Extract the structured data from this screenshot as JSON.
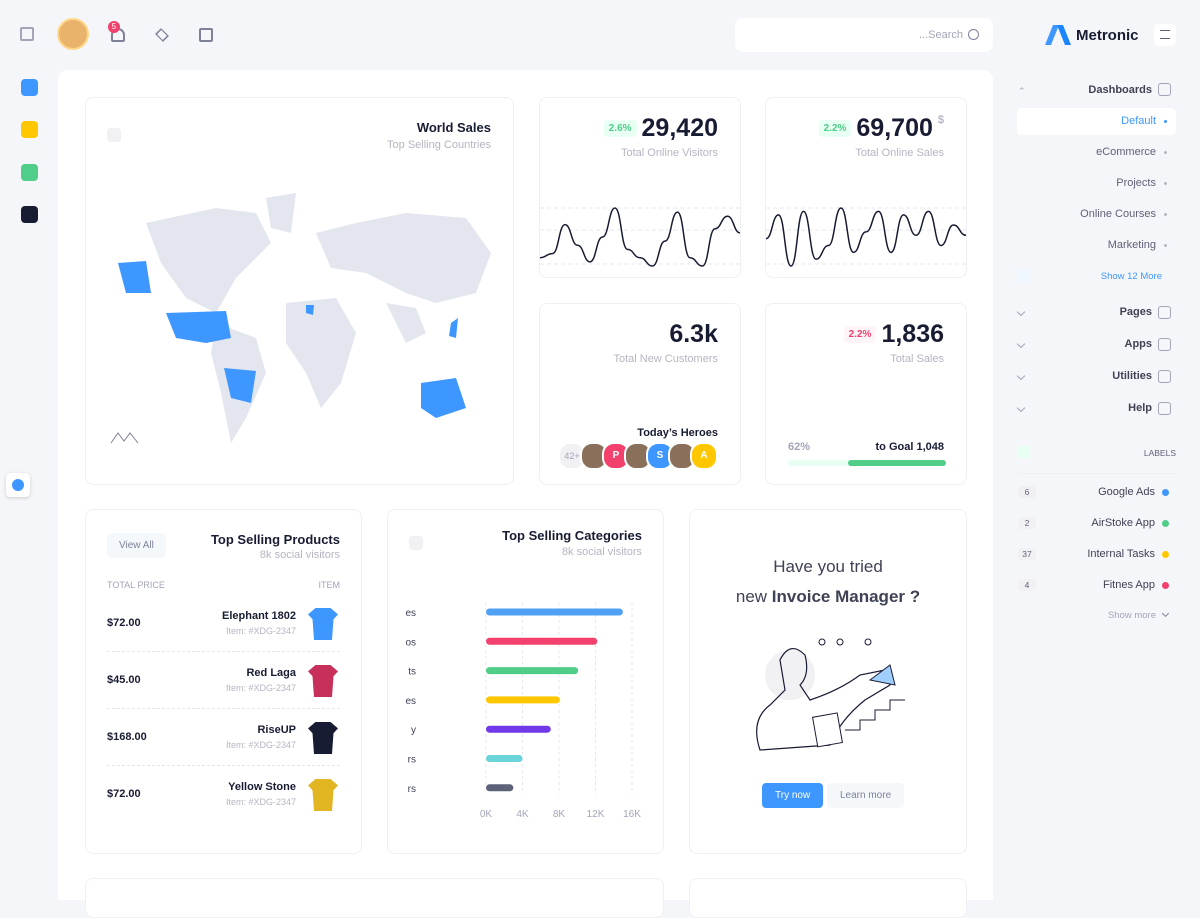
{
  "topbar": {
    "notifications": "5",
    "search": "...Search"
  },
  "brand": "Metronic",
  "world_sales": {
    "title": "World Sales",
    "subtitle": "Top Selling Countries"
  },
  "stats": [
    {
      "badge": "2.6%",
      "value": "29,420",
      "label": "Total Online Visitors",
      "sparkline": [
        30,
        35,
        70,
        45,
        25,
        55,
        90,
        40,
        30,
        20,
        50,
        85,
        30,
        20,
        65,
        80,
        60
      ]
    },
    {
      "badge": "2.2%",
      "value": "69,700",
      "unit": "$",
      "label": "Total Online Sales",
      "sparkline": [
        50,
        85,
        10,
        90,
        20,
        40,
        95,
        30,
        60,
        90,
        30,
        85,
        55,
        90,
        40,
        70,
        55
      ]
    },
    {
      "value": "6.3k",
      "label": "Total New Customers"
    },
    {
      "badge": "2.2%",
      "value": "1,836",
      "label": "Total Sales"
    }
  ],
  "heroes": {
    "title": "Today’s Heroes",
    "more": "42+",
    "letters": [
      "P",
      "S",
      "A"
    ]
  },
  "goal": {
    "percent": {
      "value": 62,
      "label": "62%"
    },
    "text": "to Goal 1,048"
  },
  "products": {
    "title": "Top Selling Products",
    "subtitle": "8k social visitors",
    "button": "View All",
    "headers": [
      "TOTAL PRICE",
      "ITEM"
    ],
    "rows": [
      {
        "price": "$72.00",
        "name": "Elephant 1802",
        "sku": "Item: #XDG-2347"
      },
      {
        "price": "$45.00",
        "name": "Red Laga",
        "sku": "Item: #XDG-2347"
      },
      {
        "price": "$168.00",
        "name": "RiseUP",
        "sku": "Item: #XDG-2347"
      },
      {
        "price": "$72.00",
        "name": "Yellow Stone",
        "sku": "Item: #XDG-2347"
      }
    ]
  },
  "categories_chart": {
    "type": "bar",
    "title": "Top Selling Categories",
    "subtitle": "8k social visitors",
    "categories": [
      "es",
      "os",
      "ts",
      "es",
      "y",
      "rs",
      "rs"
    ],
    "values": [
      15000,
      12200,
      10100,
      8100,
      7100,
      4000,
      3000
    ],
    "colors": [
      "#50a1f4",
      "#f1416c",
      "#50cd89",
      "#ffc700",
      "#7239ea",
      "#6ad4d9",
      "#5e6278"
    ],
    "xlim": [
      0,
      16000
    ],
    "xticks": [
      {
        "value": 0,
        "label": "0K"
      },
      {
        "value": 4000,
        "label": "4K"
      },
      {
        "value": 8000,
        "label": "8K"
      },
      {
        "value": 12000,
        "label": "12K"
      },
      {
        "value": 16000,
        "label": "16K"
      }
    ],
    "grid": true
  },
  "promo": {
    "line1": "Have you tried",
    "line2": "new ",
    "highlight": "Invoice Manager ?",
    "primary": "Try now",
    "secondary": "Learn more"
  },
  "menu": {
    "section": "Dashboards",
    "items": [
      "Default",
      "eCommerce",
      "Projects",
      "Online Courses",
      "Marketing"
    ],
    "more": "Show 12 More",
    "sections": [
      "Pages",
      "Apps",
      "Utilities",
      "Help"
    ],
    "labels_title": "LABELS",
    "labels": [
      {
        "count": "6",
        "name": "Google Ads",
        "color": "#3e97ff"
      },
      {
        "count": "2",
        "name": "AirStoke App",
        "color": "#50cd89"
      },
      {
        "count": "37",
        "name": "Internal Tasks",
        "color": "#ffc700"
      },
      {
        "count": "4",
        "name": "Fitnes App",
        "color": "#f1416c"
      }
    ],
    "show_more": "Show more"
  }
}
